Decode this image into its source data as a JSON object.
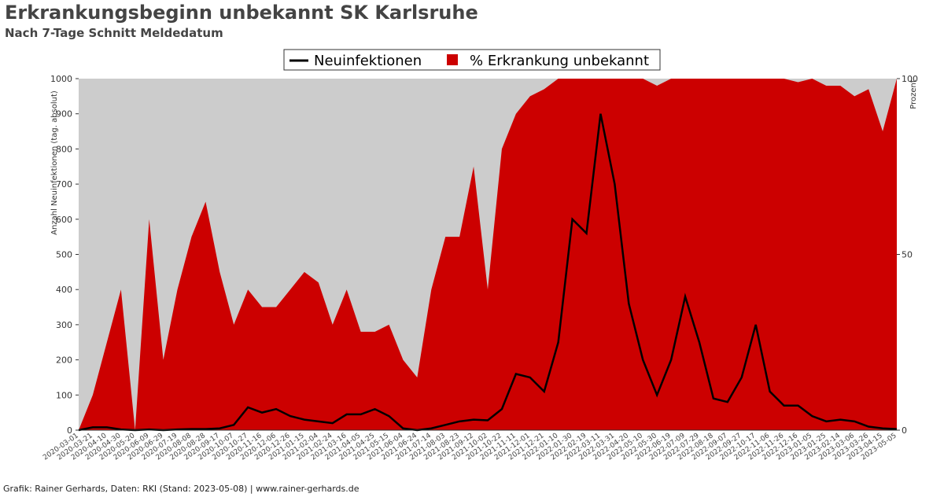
{
  "chart_data": {
    "type": "line",
    "title": "Erkrankungsbeginn unbekannt SK Karlsruhe",
    "subtitle": "Nach 7-Tage Schnitt Meldedatum",
    "ylabel": "Anzahl Neuinfektionen (tag. absolut)",
    "y2label": "Prozent",
    "footer": "Grafik: Rainer Gerhards, Daten: RKI (Stand: 2023-05-08) | www.rainer-gerhards.de",
    "categories": [
      "2020-03-01",
      "2020-03-21",
      "2020-04-10",
      "2020-04-30",
      "2020-05-20",
      "2020-06-09",
      "2020-06-29",
      "2020-07-19",
      "2020-08-08",
      "2020-08-28",
      "2020-09-17",
      "2020-10-07",
      "2020-10-27",
      "2020-11-16",
      "2020-12-06",
      "2020-12-26",
      "2021-01-15",
      "2021-02-04",
      "2021-02-24",
      "2021-03-16",
      "2021-04-05",
      "2021-04-25",
      "2021-05-15",
      "2021-06-04",
      "2021-06-24",
      "2021-07-14",
      "2021-08-03",
      "2021-08-23",
      "2021-09-12",
      "2021-10-02",
      "2021-10-22",
      "2021-11-11",
      "2021-12-01",
      "2021-12-21",
      "2022-01-10",
      "2022-01-30",
      "2022-02-19",
      "2022-03-11",
      "2022-03-31",
      "2022-04-20",
      "2022-05-10",
      "2022-05-30",
      "2022-06-19",
      "2022-07-09",
      "2022-07-29",
      "2022-08-18",
      "2022-09-07",
      "2022-09-27",
      "2022-10-17",
      "2022-11-06",
      "2022-11-26",
      "2022-12-16",
      "2023-01-05",
      "2023-01-25",
      "2023-02-14",
      "2023-03-06",
      "2023-03-26",
      "2023-04-15",
      "2023-05-05"
    ],
    "series": [
      {
        "name": "% Erkrankung unbekannt",
        "color": "#cc0000",
        "axis": "y2",
        "kind": "area",
        "values": [
          0,
          10,
          25,
          40,
          0,
          60,
          20,
          40,
          55,
          65,
          45,
          30,
          40,
          35,
          35,
          40,
          45,
          42,
          30,
          40,
          28,
          28,
          30,
          20,
          15,
          40,
          55,
          55,
          75,
          40,
          80,
          90,
          95,
          97,
          100,
          100,
          100,
          100,
          100,
          100,
          100,
          98,
          100,
          100,
          100,
          100,
          100,
          100,
          100,
          100,
          100,
          99,
          100,
          98,
          98,
          95,
          97,
          85,
          100
        ]
      },
      {
        "name": "Neuinfektionen",
        "color": "#000000",
        "kind": "line",
        "values": [
          0,
          8,
          8,
          2,
          0,
          2,
          0,
          2,
          3,
          3,
          5,
          15,
          65,
          50,
          60,
          40,
          30,
          25,
          20,
          45,
          45,
          60,
          40,
          5,
          0,
          5,
          15,
          25,
          30,
          28,
          60,
          160,
          150,
          110,
          250,
          600,
          560,
          900,
          700,
          360,
          200,
          100,
          200,
          380,
          250,
          90,
          80,
          150,
          300,
          110,
          70,
          70,
          40,
          25,
          30,
          25,
          10,
          5,
          3
        ]
      }
    ],
    "ylim": [
      0,
      1000
    ],
    "yticks": [
      0,
      100,
      200,
      300,
      400,
      500,
      600,
      700,
      800,
      900,
      1000
    ],
    "y2lim": [
      0,
      100
    ],
    "y2ticks": [
      0,
      50,
      100
    ],
    "background": "#cccccc"
  }
}
